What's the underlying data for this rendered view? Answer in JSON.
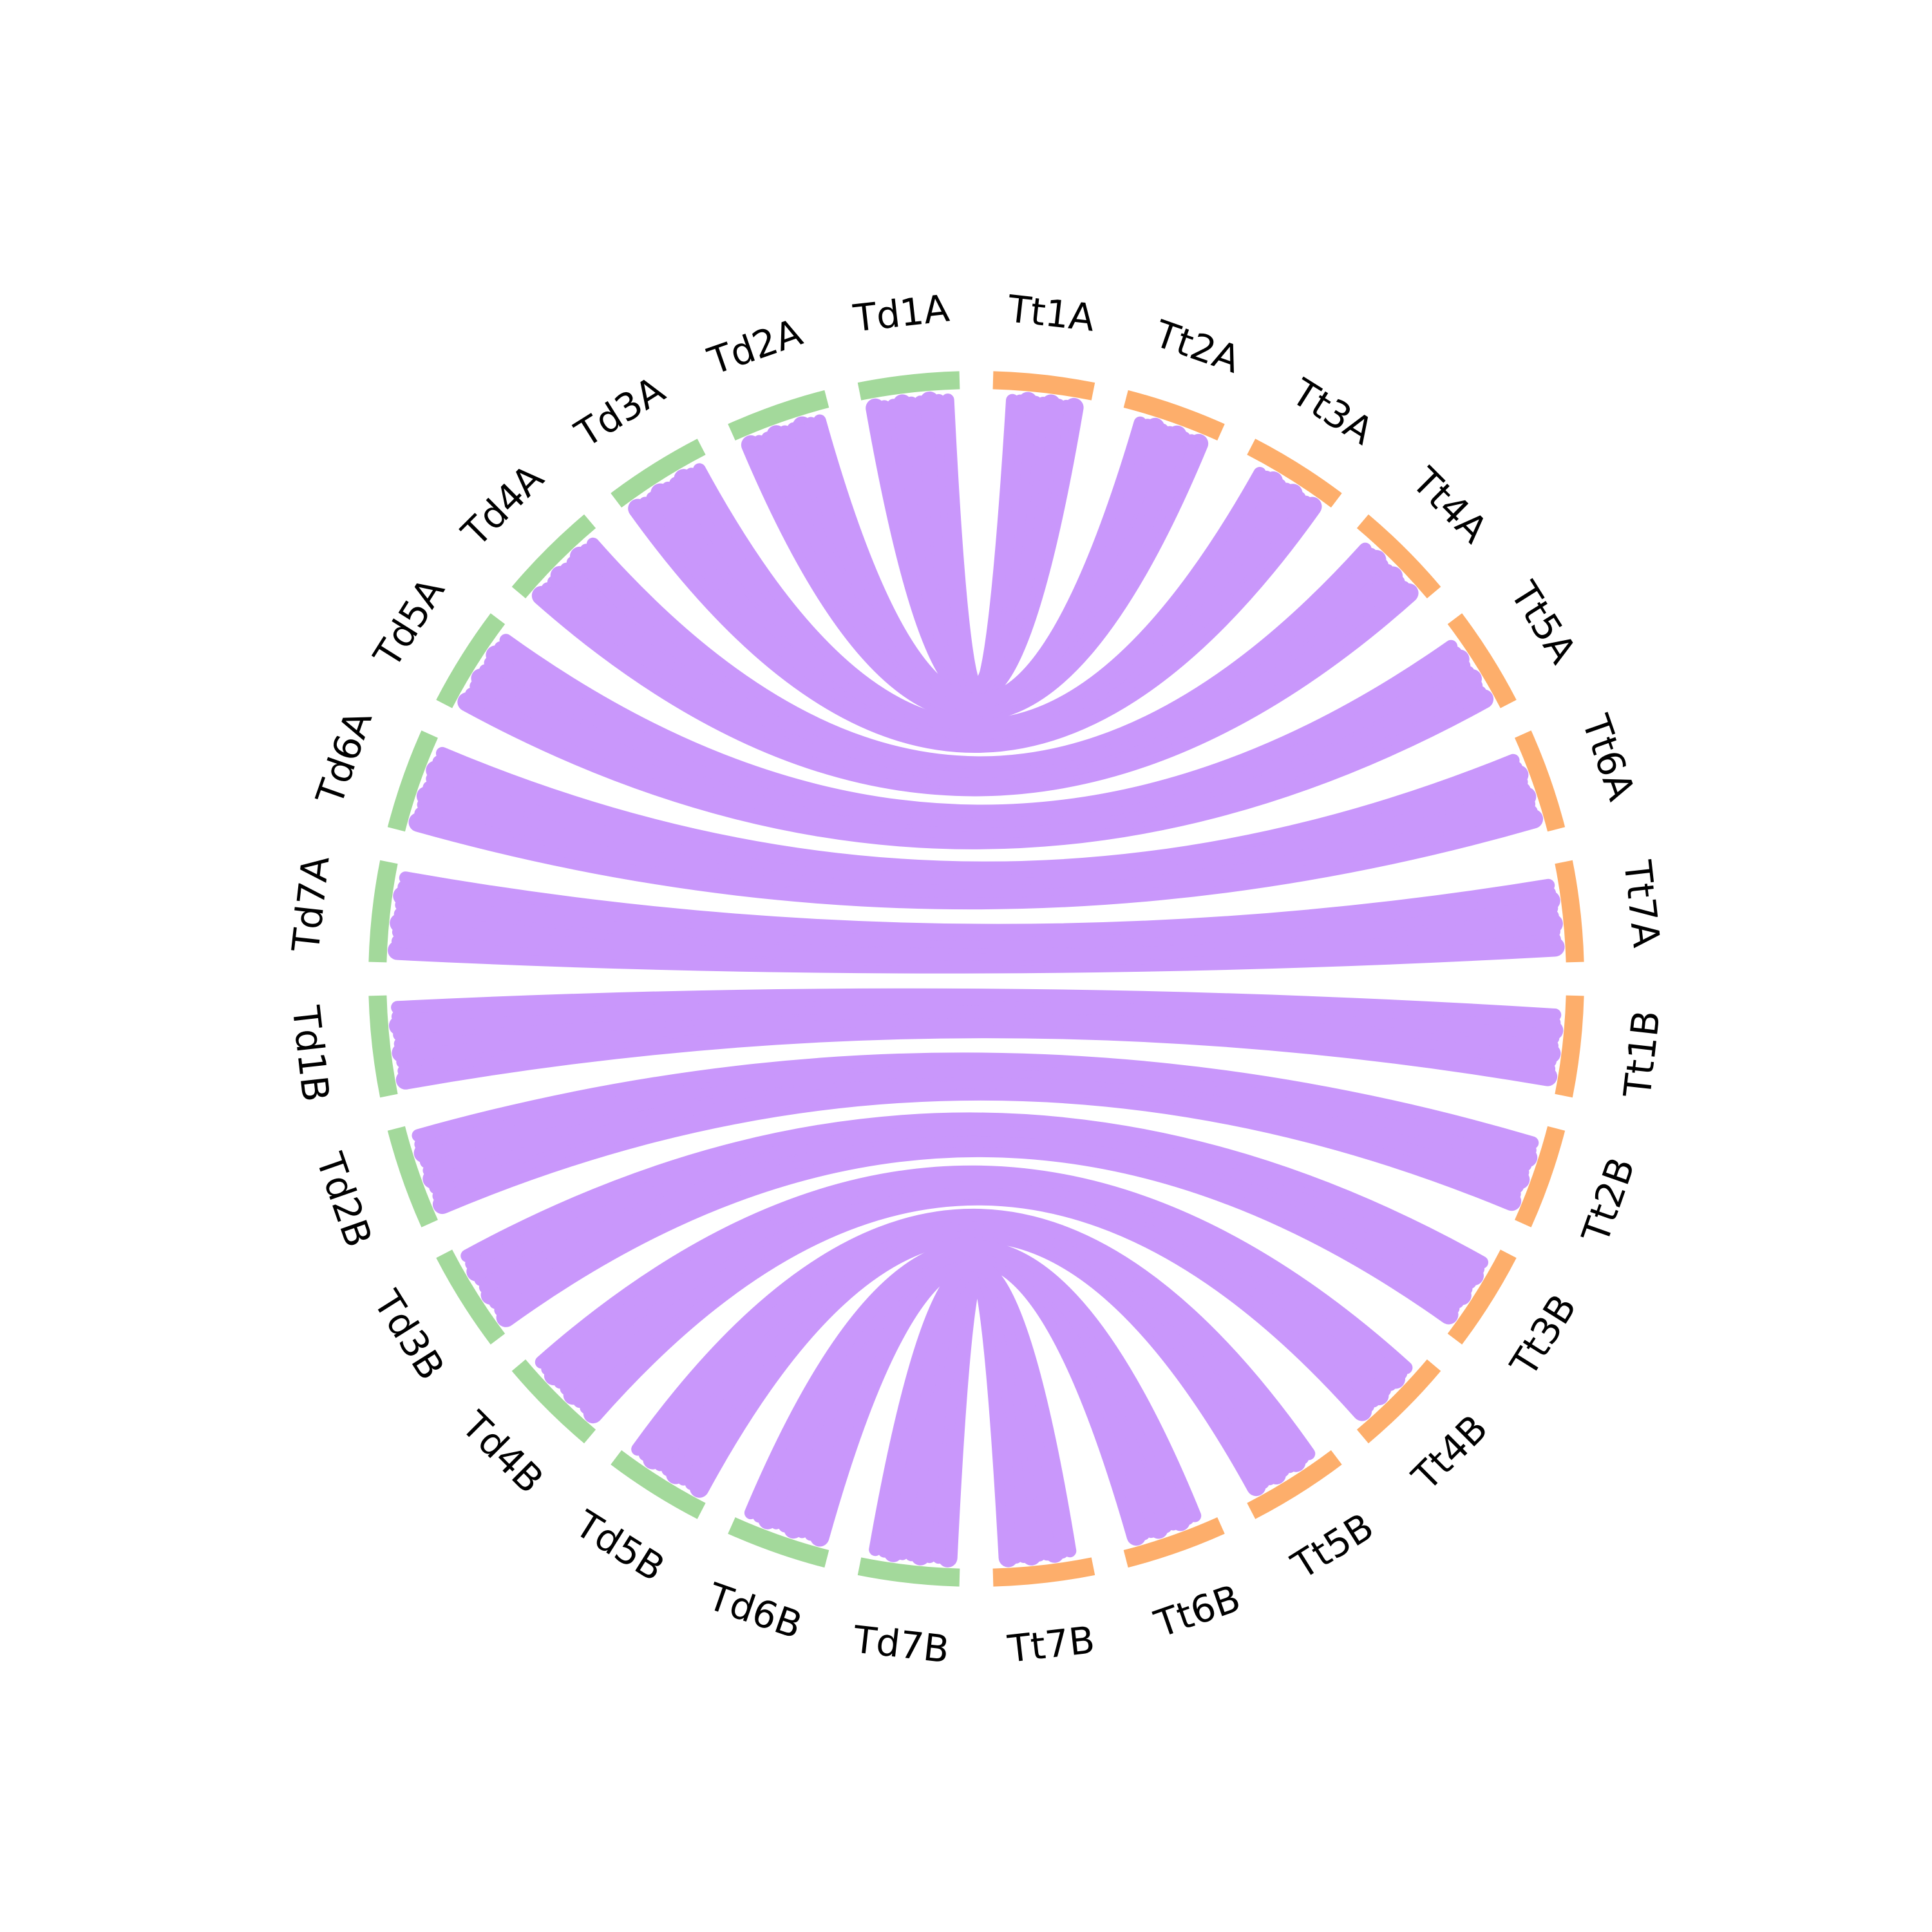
{
  "colors": {
    "left_genome": "#a3d99b",
    "right_genome": "#fdae6b",
    "link": "#c997fb",
    "label": "#000000"
  },
  "chart_data": {
    "type": "chord",
    "segments_left": [
      "Td1A",
      "Td2A",
      "Td3A",
      "Td4A",
      "Td5A",
      "Td6A",
      "Td7A",
      "Td1B",
      "Td2B",
      "Td3B",
      "Td4B",
      "Td5B",
      "Td6B",
      "Td7B"
    ],
    "segments_right": [
      "Tt1A",
      "Tt2A",
      "Tt3A",
      "Tt4A",
      "Tt5A",
      "Tt6A",
      "Tt7A",
      "Tt1B",
      "Tt2B",
      "Tt3B",
      "Tt4B",
      "Tt5B",
      "Tt6B",
      "Tt7B"
    ],
    "links": [
      {
        "source": "Td1A",
        "target": "Tt1A"
      },
      {
        "source": "Td2A",
        "target": "Tt2A"
      },
      {
        "source": "Td3A",
        "target": "Tt3A"
      },
      {
        "source": "Td4A",
        "target": "Tt4A"
      },
      {
        "source": "Td5A",
        "target": "Tt5A"
      },
      {
        "source": "Td6A",
        "target": "Tt6A"
      },
      {
        "source": "Td7A",
        "target": "Tt7A"
      },
      {
        "source": "Td1B",
        "target": "Tt1B"
      },
      {
        "source": "Td2B",
        "target": "Tt2B"
      },
      {
        "source": "Td3B",
        "target": "Tt3B"
      },
      {
        "source": "Td4B",
        "target": "Tt4B"
      },
      {
        "source": "Td5B",
        "target": "Tt5B"
      },
      {
        "source": "Td6B",
        "target": "Tt6B"
      },
      {
        "source": "Td7B",
        "target": "Tt7B"
      }
    ],
    "legend": "none",
    "grid": false
  }
}
